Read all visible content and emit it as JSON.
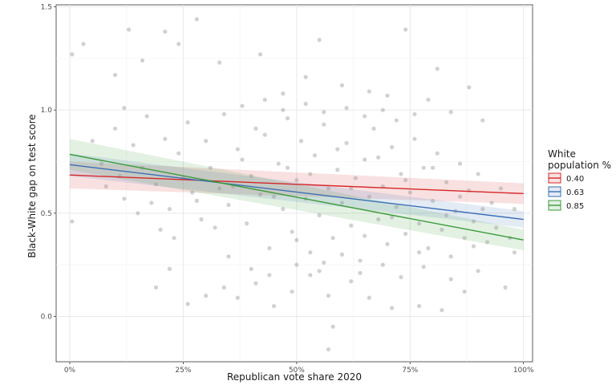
{
  "chart_data": {
    "type": "scatter",
    "title": "",
    "xlabel": "Republican vote share 2020",
    "ylabel": "Black-White gap on test score",
    "xlim": [
      -0.03,
      1.02
    ],
    "ylim": [
      -0.22,
      1.51
    ],
    "x_ticks": [
      0,
      0.25,
      0.5,
      0.75,
      1.0
    ],
    "x_tick_labels": [
      "0%",
      "25%",
      "50%",
      "75%",
      "100%"
    ],
    "y_ticks": [
      0.0,
      0.5,
      1.0,
      1.5
    ],
    "y_tick_labels": [
      "0.0",
      "0.5",
      "1.0",
      "1.5"
    ],
    "grid": true,
    "legend": {
      "title_lines": [
        "White",
        "population %"
      ],
      "placement": "right",
      "entries": [
        {
          "label": "0.40",
          "color": "#d62728"
        },
        {
          "label": "0.63",
          "color": "#3a6fb5"
        },
        {
          "label": "0.85",
          "color": "#3a9a3a"
        }
      ]
    },
    "point_color": "#999999",
    "series": [
      {
        "name": "0.40",
        "color": "#d62728",
        "x": [
          0.0,
          1.0
        ],
        "y": [
          0.685,
          0.595
        ],
        "ci_low": [
          0.62,
          0.545
        ],
        "ci_high": [
          0.75,
          0.645
        ]
      },
      {
        "name": "0.63",
        "color": "#3a6fb5",
        "x": [
          0.0,
          1.0
        ],
        "y": [
          0.735,
          0.47
        ],
        "ci_low": [
          0.68,
          0.43
        ],
        "ci_high": [
          0.79,
          0.51
        ]
      },
      {
        "name": "0.85",
        "color": "#3a9a3a",
        "x": [
          0.0,
          1.0
        ],
        "y": [
          0.785,
          0.37
        ],
        "ci_low": [
          0.71,
          0.32
        ],
        "ci_high": [
          0.86,
          0.42
        ]
      }
    ],
    "points": [
      [
        0.005,
        1.27
      ],
      [
        0.03,
        1.32
      ],
      [
        0.005,
        0.46
      ],
      [
        0.13,
        1.39
      ],
      [
        0.16,
        1.24
      ],
      [
        0.21,
        1.38
      ],
      [
        0.28,
        1.44
      ],
      [
        0.55,
        1.34
      ],
      [
        0.74,
        1.39
      ],
      [
        0.81,
        1.2
      ],
      [
        0.88,
        1.11
      ],
      [
        0.1,
        1.17
      ],
      [
        0.12,
        1.01
      ],
      [
        0.24,
        1.32
      ],
      [
        0.33,
        1.23
      ],
      [
        0.42,
        1.27
      ],
      [
        0.47,
        1.08
      ],
      [
        0.52,
        1.16
      ],
      [
        0.6,
        1.12
      ],
      [
        0.66,
        1.09
      ],
      [
        0.7,
        1.07
      ],
      [
        0.79,
        1.05
      ],
      [
        0.84,
        0.99
      ],
      [
        0.91,
        0.95
      ],
      [
        0.19,
        0.14
      ],
      [
        0.22,
        0.23
      ],
      [
        0.26,
        0.06
      ],
      [
        0.3,
        0.1
      ],
      [
        0.34,
        0.14
      ],
      [
        0.37,
        0.09
      ],
      [
        0.41,
        0.16
      ],
      [
        0.45,
        0.05
      ],
      [
        0.49,
        0.12
      ],
      [
        0.53,
        0.2
      ],
      [
        0.57,
        0.1
      ],
      [
        0.62,
        0.17
      ],
      [
        0.58,
        -0.05
      ],
      [
        0.57,
        -0.16
      ],
      [
        0.66,
        0.09
      ],
      [
        0.71,
        0.04
      ],
      [
        0.77,
        0.05
      ],
      [
        0.82,
        0.03
      ],
      [
        0.87,
        0.12
      ],
      [
        0.96,
        0.14
      ],
      [
        0.98,
        0.31
      ],
      [
        0.15,
        0.5
      ],
      [
        0.18,
        0.55
      ],
      [
        0.2,
        0.42
      ],
      [
        0.23,
        0.38
      ],
      [
        0.27,
        0.6
      ],
      [
        0.29,
        0.47
      ],
      [
        0.31,
        0.72
      ],
      [
        0.33,
        0.62
      ],
      [
        0.35,
        0.54
      ],
      [
        0.37,
        0.81
      ],
      [
        0.39,
        0.45
      ],
      [
        0.4,
        0.68
      ],
      [
        0.42,
        0.59
      ],
      [
        0.43,
        0.88
      ],
      [
        0.44,
        0.33
      ],
      [
        0.46,
        0.74
      ],
      [
        0.47,
        0.52
      ],
      [
        0.48,
        0.96
      ],
      [
        0.49,
        0.41
      ],
      [
        0.5,
        0.66
      ],
      [
        0.51,
        0.85
      ],
      [
        0.52,
        0.57
      ],
      [
        0.53,
        0.31
      ],
      [
        0.54,
        0.78
      ],
      [
        0.55,
        0.49
      ],
      [
        0.56,
        0.93
      ],
      [
        0.57,
        0.62
      ],
      [
        0.58,
        0.38
      ],
      [
        0.59,
        0.71
      ],
      [
        0.6,
        0.55
      ],
      [
        0.61,
        0.84
      ],
      [
        0.62,
        0.44
      ],
      [
        0.63,
        0.67
      ],
      [
        0.64,
        0.27
      ],
      [
        0.65,
        0.76
      ],
      [
        0.66,
        0.58
      ],
      [
        0.67,
        0.91
      ],
      [
        0.68,
        0.47
      ],
      [
        0.69,
        0.63
      ],
      [
        0.7,
        0.35
      ],
      [
        0.71,
        0.82
      ],
      [
        0.72,
        0.53
      ],
      [
        0.73,
        0.69
      ],
      [
        0.74,
        0.4
      ],
      [
        0.75,
        0.6
      ],
      [
        0.76,
        0.86
      ],
      [
        0.77,
        0.45
      ],
      [
        0.78,
        0.72
      ],
      [
        0.79,
        0.33
      ],
      [
        0.8,
        0.56
      ],
      [
        0.81,
        0.79
      ],
      [
        0.82,
        0.42
      ],
      [
        0.83,
        0.65
      ],
      [
        0.84,
        0.29
      ],
      [
        0.85,
        0.51
      ],
      [
        0.86,
        0.74
      ],
      [
        0.87,
        0.38
      ],
      [
        0.88,
        0.61
      ],
      [
        0.89,
        0.46
      ],
      [
        0.9,
        0.69
      ],
      [
        0.92,
        0.36
      ],
      [
        0.93,
        0.55
      ],
      [
        0.94,
        0.43
      ],
      [
        0.95,
        0.62
      ],
      [
        0.97,
        0.38
      ],
      [
        0.98,
        0.52
      ],
      [
        0.05,
        0.85
      ],
      [
        0.07,
        0.74
      ],
      [
        0.08,
        0.63
      ],
      [
        0.1,
        0.91
      ],
      [
        0.11,
        0.68
      ],
      [
        0.12,
        0.57
      ],
      [
        0.14,
        0.83
      ],
      [
        0.16,
        0.72
      ],
      [
        0.17,
        0.97
      ],
      [
        0.19,
        0.64
      ],
      [
        0.21,
        0.86
      ],
      [
        0.22,
        0.52
      ],
      [
        0.24,
        0.79
      ],
      [
        0.25,
        0.67
      ],
      [
        0.26,
        0.94
      ],
      [
        0.28,
        0.56
      ],
      [
        0.3,
        0.85
      ],
      [
        0.32,
        0.43
      ],
      [
        0.34,
        0.98
      ],
      [
        0.36,
        0.63
      ],
      [
        0.38,
        0.76
      ],
      [
        0.41,
        0.91
      ],
      [
        0.45,
        0.58
      ],
      [
        0.48,
        0.72
      ],
      [
        0.5,
        0.37
      ],
      [
        0.53,
        0.69
      ],
      [
        0.56,
        0.26
      ],
      [
        0.59,
        0.81
      ],
      [
        0.62,
        0.62
      ],
      [
        0.65,
        0.39
      ],
      [
        0.68,
        0.77
      ],
      [
        0.71,
        0.48
      ],
      [
        0.74,
        0.66
      ],
      [
        0.77,
        0.31
      ],
      [
        0.8,
        0.72
      ],
      [
        0.83,
        0.49
      ],
      [
        0.86,
        0.58
      ],
      [
        0.89,
        0.34
      ],
      [
        0.91,
        0.52
      ],
      [
        0.35,
        0.29
      ],
      [
        0.4,
        0.23
      ],
      [
        0.44,
        0.2
      ],
      [
        0.5,
        0.25
      ],
      [
        0.55,
        0.22
      ],
      [
        0.6,
        0.3
      ],
      [
        0.64,
        0.21
      ],
      [
        0.69,
        0.25
      ],
      [
        0.73,
        0.19
      ],
      [
        0.78,
        0.24
      ],
      [
        0.84,
        0.18
      ],
      [
        0.9,
        0.22
      ],
      [
        0.38,
        1.02
      ],
      [
        0.43,
        1.05
      ],
      [
        0.47,
        1.0
      ],
      [
        0.52,
        1.03
      ],
      [
        0.56,
        0.99
      ],
      [
        0.61,
        1.01
      ],
      [
        0.65,
        0.97
      ],
      [
        0.69,
        1.0
      ],
      [
        0.72,
        0.95
      ],
      [
        0.76,
        0.98
      ]
    ]
  }
}
